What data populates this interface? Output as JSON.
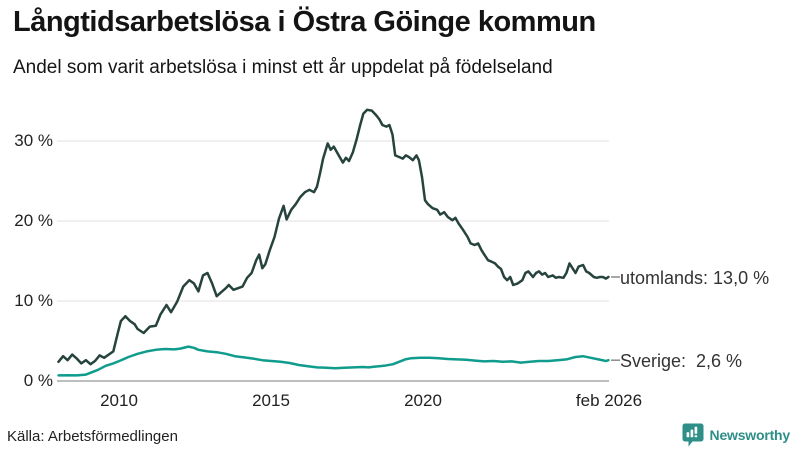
{
  "chart_data": {
    "type": "line",
    "title": "Långtidsarbetslösa i Östra Göinge kommun",
    "subtitle": "Andel som varit arbetslösa i minst ett år uppdelat på födelseland",
    "source": "Källa: Arbetsförmedlingen",
    "brand": "Newsworthy",
    "xlim": [
      2007.95,
      2026.1
    ],
    "ylim": [
      0,
      35
    ],
    "grid": "horizontal-only",
    "legend_position": "right-end-labels",
    "y_ticks": [
      {
        "label": "0 %",
        "value": 0
      },
      {
        "label": "10 %",
        "value": 10
      },
      {
        "label": "20 %",
        "value": 20
      },
      {
        "label": "30 %",
        "value": 30
      }
    ],
    "x_ticks": [
      {
        "label": "2010",
        "year": 2010
      },
      {
        "label": "2015",
        "year": 2015
      },
      {
        "label": "2020",
        "year": 2020
      },
      {
        "label": "feb 2026",
        "year": 2026.08
      }
    ],
    "series": [
      {
        "name": "utomlands",
        "end_label": "utomlands: 13,0 %",
        "end_value": "13,0 %",
        "color": "#26433d",
        "points": [
          [
            2008.0,
            2.4
          ],
          [
            2008.15,
            3.1
          ],
          [
            2008.3,
            2.6
          ],
          [
            2008.45,
            3.3
          ],
          [
            2008.6,
            2.8
          ],
          [
            2008.75,
            2.2
          ],
          [
            2008.9,
            2.6
          ],
          [
            2009.05,
            2.1
          ],
          [
            2009.2,
            2.5
          ],
          [
            2009.35,
            3.2
          ],
          [
            2009.5,
            2.9
          ],
          [
            2009.65,
            3.3
          ],
          [
            2009.8,
            3.7
          ],
          [
            2009.95,
            6.0
          ],
          [
            2010.05,
            7.5
          ],
          [
            2010.2,
            8.1
          ],
          [
            2010.35,
            7.5
          ],
          [
            2010.5,
            7.1
          ],
          [
            2010.6,
            6.5
          ],
          [
            2010.8,
            6.0
          ],
          [
            2011.0,
            6.8
          ],
          [
            2011.2,
            6.9
          ],
          [
            2011.35,
            8.3
          ],
          [
            2011.55,
            9.5
          ],
          [
            2011.7,
            8.6
          ],
          [
            2011.9,
            9.9
          ],
          [
            2012.1,
            11.8
          ],
          [
            2012.3,
            12.6
          ],
          [
            2012.45,
            12.2
          ],
          [
            2012.6,
            11.2
          ],
          [
            2012.75,
            13.2
          ],
          [
            2012.9,
            13.5
          ],
          [
            2013.05,
            12.2
          ],
          [
            2013.2,
            10.6
          ],
          [
            2013.35,
            11.1
          ],
          [
            2013.5,
            11.6
          ],
          [
            2013.6,
            12.0
          ],
          [
            2013.75,
            11.4
          ],
          [
            2013.9,
            11.6
          ],
          [
            2014.05,
            11.8
          ],
          [
            2014.2,
            12.9
          ],
          [
            2014.35,
            13.5
          ],
          [
            2014.5,
            15.1
          ],
          [
            2014.6,
            15.8
          ],
          [
            2014.7,
            14.1
          ],
          [
            2014.8,
            14.6
          ],
          [
            2014.95,
            16.4
          ],
          [
            2015.1,
            18.0
          ],
          [
            2015.25,
            20.3
          ],
          [
            2015.4,
            21.9
          ],
          [
            2015.5,
            20.2
          ],
          [
            2015.65,
            21.4
          ],
          [
            2015.8,
            22.1
          ],
          [
            2015.95,
            23.0
          ],
          [
            2016.1,
            23.6
          ],
          [
            2016.25,
            23.9
          ],
          [
            2016.4,
            23.6
          ],
          [
            2016.5,
            24.3
          ],
          [
            2016.6,
            26.0
          ],
          [
            2016.7,
            27.8
          ],
          [
            2016.85,
            29.7
          ],
          [
            2016.95,
            28.9
          ],
          [
            2017.05,
            29.3
          ],
          [
            2017.2,
            28.3
          ],
          [
            2017.35,
            27.3
          ],
          [
            2017.45,
            27.9
          ],
          [
            2017.55,
            27.5
          ],
          [
            2017.68,
            28.6
          ],
          [
            2017.8,
            30.2
          ],
          [
            2017.92,
            32.0
          ],
          [
            2018.02,
            33.4
          ],
          [
            2018.15,
            33.9
          ],
          [
            2018.3,
            33.8
          ],
          [
            2018.45,
            33.2
          ],
          [
            2018.55,
            32.7
          ],
          [
            2018.65,
            32.0
          ],
          [
            2018.78,
            31.8
          ],
          [
            2018.88,
            32.0
          ],
          [
            2018.98,
            30.8
          ],
          [
            2019.07,
            28.2
          ],
          [
            2019.2,
            28.0
          ],
          [
            2019.32,
            27.8
          ],
          [
            2019.42,
            28.2
          ],
          [
            2019.52,
            28.0
          ],
          [
            2019.65,
            27.6
          ],
          [
            2019.77,
            28.2
          ],
          [
            2019.85,
            27.6
          ],
          [
            2019.95,
            25.5
          ],
          [
            2020.05,
            22.6
          ],
          [
            2020.15,
            22.1
          ],
          [
            2020.3,
            21.6
          ],
          [
            2020.45,
            21.4
          ],
          [
            2020.55,
            20.8
          ],
          [
            2020.68,
            21.1
          ],
          [
            2020.8,
            20.5
          ],
          [
            2020.95,
            20.1
          ],
          [
            2021.05,
            20.4
          ],
          [
            2021.15,
            19.7
          ],
          [
            2021.3,
            18.9
          ],
          [
            2021.45,
            18.0
          ],
          [
            2021.55,
            17.2
          ],
          [
            2021.68,
            17.0
          ],
          [
            2021.8,
            17.2
          ],
          [
            2021.9,
            16.4
          ],
          [
            2022.0,
            15.8
          ],
          [
            2022.12,
            15.1
          ],
          [
            2022.25,
            14.9
          ],
          [
            2022.35,
            14.7
          ],
          [
            2022.45,
            14.3
          ],
          [
            2022.55,
            14.0
          ],
          [
            2022.65,
            13.0
          ],
          [
            2022.75,
            12.6
          ],
          [
            2022.85,
            13.0
          ],
          [
            2022.95,
            12.0
          ],
          [
            2023.1,
            12.2
          ],
          [
            2023.25,
            12.6
          ],
          [
            2023.35,
            13.5
          ],
          [
            2023.45,
            13.7
          ],
          [
            2023.6,
            13.0
          ],
          [
            2023.7,
            13.5
          ],
          [
            2023.8,
            13.7
          ],
          [
            2023.9,
            13.3
          ],
          [
            2024.0,
            13.5
          ],
          [
            2024.1,
            13.0
          ],
          [
            2024.25,
            13.2
          ],
          [
            2024.35,
            12.9
          ],
          [
            2024.45,
            13.0
          ],
          [
            2024.6,
            12.9
          ],
          [
            2024.7,
            13.5
          ],
          [
            2024.8,
            14.7
          ],
          [
            2024.9,
            14.1
          ],
          [
            2025.0,
            13.5
          ],
          [
            2025.1,
            14.3
          ],
          [
            2025.25,
            14.5
          ],
          [
            2025.35,
            13.7
          ],
          [
            2025.45,
            13.5
          ],
          [
            2025.6,
            13.0
          ],
          [
            2025.7,
            12.9
          ],
          [
            2025.8,
            13.0
          ],
          [
            2025.9,
            13.0
          ],
          [
            2026.0,
            12.8
          ],
          [
            2026.08,
            13.0
          ]
        ]
      },
      {
        "name": "Sverige",
        "end_label": "Sverige:  2,6 %",
        "end_value": "2,6 %",
        "color": "#109c8d",
        "points": [
          [
            2008.0,
            0.7
          ],
          [
            2008.3,
            0.72
          ],
          [
            2008.6,
            0.7
          ],
          [
            2008.9,
            0.8
          ],
          [
            2009.1,
            1.1
          ],
          [
            2009.3,
            1.4
          ],
          [
            2009.55,
            1.9
          ],
          [
            2009.8,
            2.2
          ],
          [
            2010.0,
            2.5
          ],
          [
            2010.3,
            3.0
          ],
          [
            2010.6,
            3.4
          ],
          [
            2010.9,
            3.7
          ],
          [
            2011.2,
            3.9
          ],
          [
            2011.5,
            4.0
          ],
          [
            2011.8,
            3.95
          ],
          [
            2012.0,
            4.05
          ],
          [
            2012.27,
            4.3
          ],
          [
            2012.45,
            4.15
          ],
          [
            2012.6,
            3.9
          ],
          [
            2012.9,
            3.7
          ],
          [
            2013.2,
            3.6
          ],
          [
            2013.5,
            3.4
          ],
          [
            2013.8,
            3.1
          ],
          [
            2014.1,
            2.95
          ],
          [
            2014.4,
            2.8
          ],
          [
            2014.7,
            2.6
          ],
          [
            2015.0,
            2.5
          ],
          [
            2015.3,
            2.4
          ],
          [
            2015.6,
            2.25
          ],
          [
            2015.9,
            2.0
          ],
          [
            2016.2,
            1.85
          ],
          [
            2016.5,
            1.7
          ],
          [
            2016.8,
            1.65
          ],
          [
            2017.1,
            1.6
          ],
          [
            2017.4,
            1.65
          ],
          [
            2017.7,
            1.7
          ],
          [
            2018.0,
            1.75
          ],
          [
            2018.2,
            1.7
          ],
          [
            2018.4,
            1.8
          ],
          [
            2018.7,
            1.9
          ],
          [
            2019.0,
            2.1
          ],
          [
            2019.2,
            2.4
          ],
          [
            2019.4,
            2.7
          ],
          [
            2019.6,
            2.85
          ],
          [
            2019.9,
            2.9
          ],
          [
            2020.2,
            2.9
          ],
          [
            2020.5,
            2.85
          ],
          [
            2020.8,
            2.75
          ],
          [
            2021.1,
            2.7
          ],
          [
            2021.4,
            2.65
          ],
          [
            2021.7,
            2.55
          ],
          [
            2022.0,
            2.45
          ],
          [
            2022.3,
            2.5
          ],
          [
            2022.6,
            2.4
          ],
          [
            2022.9,
            2.45
          ],
          [
            2023.2,
            2.3
          ],
          [
            2023.5,
            2.4
          ],
          [
            2023.8,
            2.5
          ],
          [
            2024.1,
            2.5
          ],
          [
            2024.4,
            2.6
          ],
          [
            2024.7,
            2.7
          ],
          [
            2025.0,
            3.0
          ],
          [
            2025.25,
            3.1
          ],
          [
            2025.5,
            2.9
          ],
          [
            2025.75,
            2.7
          ],
          [
            2026.0,
            2.5
          ],
          [
            2026.08,
            2.6
          ]
        ]
      }
    ],
    "colors": {
      "utomlands_line": "#26433d",
      "sverige_line": "#109c8d",
      "gridline": "#e2e2e2",
      "axis_line": "#a9a9a9",
      "brand_teal": "#2e8e88"
    }
  }
}
